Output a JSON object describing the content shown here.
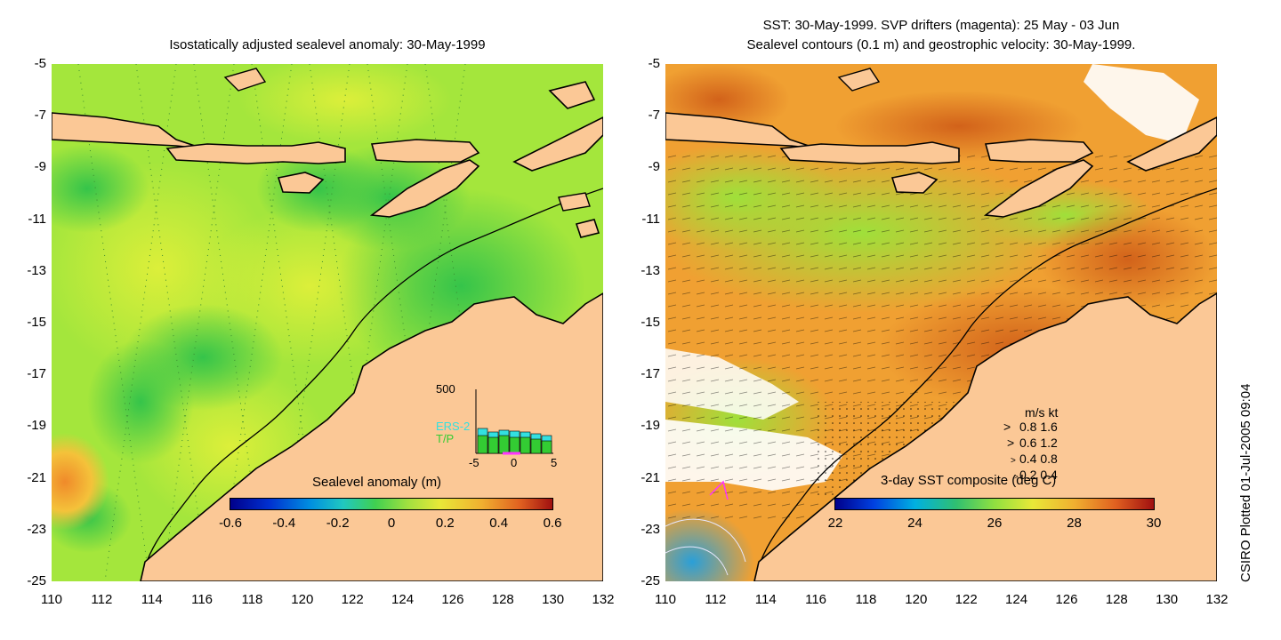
{
  "left_map": {
    "title": "Isostatically adjusted sealevel anomaly: 30-May-1999",
    "colorbar": {
      "label": "Sealevel anomaly (m)",
      "ticks": [
        "-0.6",
        "-0.4",
        "-0.2",
        "0",
        "0.2",
        "0.4",
        "0.6"
      ]
    },
    "inset": {
      "ymax": "500",
      "series": [
        "ERS-2",
        "T/P"
      ],
      "xticks": [
        "-5",
        "0",
        "5"
      ]
    }
  },
  "right_map": {
    "title_line1": "SST: 30-May-1999. SVP drifters (magenta): 25 May - 03 Jun",
    "title_line2": "Sealevel contours (0.1 m) and geostrophic velocity: 30-May-1999.",
    "colorbar": {
      "label": "3-day SST composite (deg C)",
      "ticks": [
        "22",
        "24",
        "26",
        "28",
        "30"
      ]
    },
    "velocity_legend": {
      "header": "m/s  kt",
      "rows": [
        "0.8  1.6",
        "0.6  1.2",
        "0.4  0.8",
        "0.2  0.4"
      ]
    }
  },
  "axes": {
    "y_ticks": [
      "-5",
      "-7",
      "-9",
      "-11",
      "-13",
      "-15",
      "-17",
      "-19",
      "-21",
      "-23",
      "-25"
    ],
    "x_ticks": [
      "110",
      "112",
      "114",
      "116",
      "118",
      "120",
      "122",
      "124",
      "126",
      "128",
      "130",
      "132"
    ]
  },
  "credit": "CSIRO Plotted 01-Jul-2005 09:04",
  "colors": {
    "land": "#fbc896",
    "coast": "#000000",
    "ocean_green": "#8ee63c",
    "ocean_yellow": "#c8ee3a",
    "ocean_dark_green": "#3dc944",
    "sst_orange": "#f0a030",
    "sst_dark_orange": "#d9741f"
  }
}
